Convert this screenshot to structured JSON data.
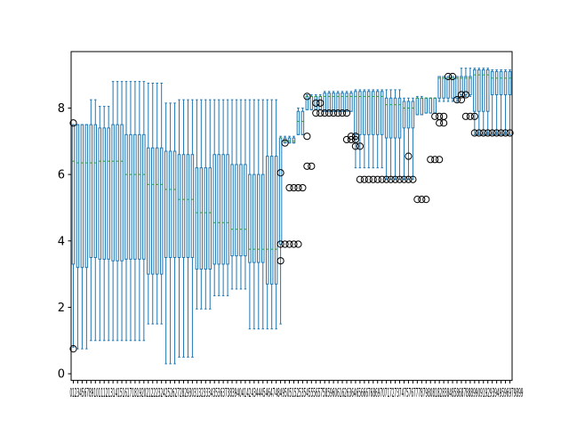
{
  "chart_data": {
    "type": "box",
    "title": "",
    "xlabel": "",
    "ylabel": "",
    "ylim": [
      -0.2,
      9.7
    ],
    "yticks": [
      0,
      2,
      4,
      6,
      8
    ],
    "xtick_label_text": "0123456789101112131415161718192021222324252627282930313233343536373839404142434445464748495051525354555657585960616263646566676869707172737475767778798081828384858687888990919293949596979899",
    "box_color": "#1f77b4",
    "median_color": "#2ca02c",
    "flier_color": "#000000",
    "segments": [
      {
        "from": 0,
        "to": 1,
        "q1": 3.3,
        "q3": 7.5,
        "median": 6.4,
        "wlo": 0.8,
        "whi": 7.5
      },
      {
        "from": 1,
        "to": 4,
        "q1": 3.2,
        "q3": 7.5,
        "median": 6.35,
        "wlo": 0.75,
        "whi": 7.5
      },
      {
        "from": 4,
        "to": 6,
        "q1": 3.5,
        "q3": 7.5,
        "median": 6.35,
        "wlo": 1.0,
        "whi": 8.25
      },
      {
        "from": 6,
        "to": 9,
        "q1": 3.45,
        "q3": 7.4,
        "median": 6.4,
        "wlo": 1.0,
        "whi": 8.05
      },
      {
        "from": 9,
        "to": 12,
        "q1": 3.4,
        "q3": 7.5,
        "median": 6.4,
        "wlo": 1.0,
        "whi": 8.8
      },
      {
        "from": 12,
        "to": 17,
        "q1": 3.45,
        "q3": 7.2,
        "median": 6.0,
        "wlo": 1.0,
        "whi": 8.8
      },
      {
        "from": 17,
        "to": 21,
        "q1": 3.0,
        "q3": 6.8,
        "median": 5.7,
        "wlo": 1.5,
        "whi": 8.75
      },
      {
        "from": 21,
        "to": 24,
        "q1": 3.5,
        "q3": 6.7,
        "median": 5.55,
        "wlo": 0.3,
        "whi": 8.15
      },
      {
        "from": 24,
        "to": 28,
        "q1": 3.5,
        "q3": 6.6,
        "median": 5.25,
        "wlo": 0.5,
        "whi": 8.25
      },
      {
        "from": 28,
        "to": 32,
        "q1": 3.15,
        "q3": 6.2,
        "median": 4.85,
        "wlo": 1.95,
        "whi": 8.25
      },
      {
        "from": 32,
        "to": 36,
        "q1": 3.3,
        "q3": 6.6,
        "median": 4.55,
        "wlo": 2.35,
        "whi": 8.25
      },
      {
        "from": 36,
        "to": 40,
        "q1": 3.55,
        "q3": 6.3,
        "median": 4.35,
        "wlo": 2.55,
        "whi": 8.25
      },
      {
        "from": 40,
        "to": 44,
        "q1": 3.35,
        "q3": 6.0,
        "median": 3.75,
        "wlo": 1.35,
        "whi": 8.25
      },
      {
        "from": 44,
        "to": 47,
        "q1": 2.7,
        "q3": 6.55,
        "median": 3.75,
        "wlo": 1.35,
        "whi": 8.25
      },
      {
        "from": 47,
        "to": 48,
        "q1": 3.9,
        "q3": 7.1,
        "median": 7.1,
        "wlo": 1.5,
        "whi": 7.15
      },
      {
        "from": 48,
        "to": 51,
        "q1": 6.95,
        "q3": 7.1,
        "median": 7.0,
        "wlo": 6.95,
        "whi": 7.15
      },
      {
        "from": 51,
        "to": 53,
        "q1": 7.2,
        "q3": 7.9,
        "median": 7.6,
        "wlo": 7.2,
        "whi": 8.0
      },
      {
        "from": 53,
        "to": 57,
        "q1": 7.95,
        "q3": 8.35,
        "median": 8.35,
        "wlo": 7.95,
        "whi": 8.4
      },
      {
        "from": 57,
        "to": 64,
        "q1": 7.9,
        "q3": 8.45,
        "median": 8.35,
        "wlo": 7.9,
        "whi": 8.5
      },
      {
        "from": 64,
        "to": 71,
        "q1": 7.2,
        "q3": 8.5,
        "median": 8.35,
        "wlo": 6.2,
        "whi": 8.55
      },
      {
        "from": 71,
        "to": 75,
        "q1": 7.1,
        "q3": 8.3,
        "median": 8.1,
        "wlo": 5.85,
        "whi": 8.55
      },
      {
        "from": 75,
        "to": 78,
        "q1": 7.4,
        "q3": 8.2,
        "median": 8.0,
        "wlo": 5.85,
        "whi": 8.3
      },
      {
        "from": 78,
        "to": 80,
        "q1": 7.8,
        "q3": 8.3,
        "median": 8.3,
        "wlo": 7.8,
        "whi": 8.35
      },
      {
        "from": 80,
        "to": 83,
        "q1": 7.85,
        "q3": 8.3,
        "median": 8.3,
        "wlo": 7.85,
        "whi": 8.3
      },
      {
        "from": 83,
        "to": 88,
        "q1": 8.3,
        "q3": 8.95,
        "median": 8.9,
        "wlo": 8.2,
        "whi": 8.95
      },
      {
        "from": 88,
        "to": 91,
        "q1": 8.4,
        "q3": 8.95,
        "median": 8.9,
        "wlo": 8.35,
        "whi": 9.2
      },
      {
        "from": 91,
        "to": 95,
        "q1": 7.9,
        "q3": 9.15,
        "median": 9.0,
        "wlo": 7.2,
        "whi": 9.2
      },
      {
        "from": 95,
        "to": 100,
        "q1": 8.4,
        "q3": 9.1,
        "median": 8.9,
        "wlo": 7.2,
        "whi": 9.15
      }
    ],
    "outlier_groups": [
      {
        "from": 0,
        "to": 0,
        "values": [
          7.55,
          0.75
        ]
      },
      {
        "from": 47,
        "to": 47,
        "values": [
          6.05,
          3.4
        ]
      },
      {
        "from": 47,
        "to": 51,
        "values": [
          3.9
        ]
      },
      {
        "from": 48,
        "to": 48,
        "values": [
          6.95
        ]
      },
      {
        "from": 49,
        "to": 52,
        "values": [
          5.6
        ]
      },
      {
        "from": 53,
        "to": 54,
        "values": [
          6.25
        ]
      },
      {
        "from": 53,
        "to": 53,
        "values": [
          7.15,
          8.35
        ]
      },
      {
        "from": 55,
        "to": 56,
        "values": [
          8.15
        ]
      },
      {
        "from": 55,
        "to": 62,
        "values": [
          7.85
        ]
      },
      {
        "from": 62,
        "to": 64,
        "values": [
          7.05
        ]
      },
      {
        "from": 63,
        "to": 64,
        "values": [
          7.15
        ]
      },
      {
        "from": 64,
        "to": 65,
        "values": [
          6.85
        ]
      },
      {
        "from": 65,
        "to": 74,
        "values": [
          5.85
        ]
      },
      {
        "from": 75,
        "to": 77,
        "values": [
          5.85
        ]
      },
      {
        "from": 76,
        "to": 76,
        "values": [
          6.55
        ]
      },
      {
        "from": 78,
        "to": 80,
        "values": [
          5.25
        ]
      },
      {
        "from": 81,
        "to": 83,
        "values": [
          6.45
        ]
      },
      {
        "from": 82,
        "to": 84,
        "values": [
          7.75
        ]
      },
      {
        "from": 83,
        "to": 84,
        "values": [
          7.55
        ]
      },
      {
        "from": 85,
        "to": 86,
        "values": [
          8.95
        ]
      },
      {
        "from": 87,
        "to": 88,
        "values": [
          8.25
        ]
      },
      {
        "from": 88,
        "to": 89,
        "values": [
          8.4
        ]
      },
      {
        "from": 89,
        "to": 91,
        "values": [
          7.75
        ]
      },
      {
        "from": 91,
        "to": 99,
        "values": [
          7.25
        ]
      }
    ]
  }
}
